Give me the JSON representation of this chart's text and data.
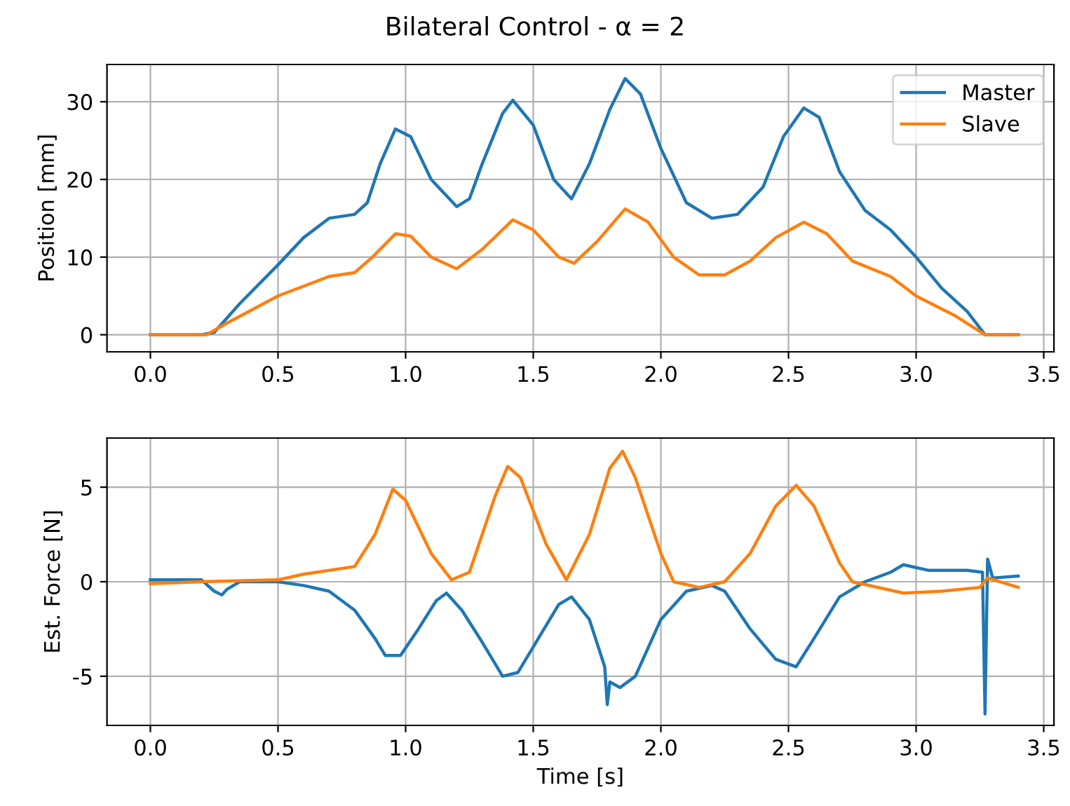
{
  "chart_data": [
    {
      "type": "line",
      "title": "Bilateral Control - α = 2",
      "ylabel": "Position [mm]",
      "xlim": [
        -0.17,
        3.54
      ],
      "xticks": [
        {
          "value": 0,
          "label": "0.0"
        },
        {
          "value": 0.5,
          "label": "0.5"
        },
        {
          "value": 1,
          "label": "1.0"
        },
        {
          "value": 1.5,
          "label": "1.5"
        },
        {
          "value": 2,
          "label": "2.0"
        },
        {
          "value": 2.5,
          "label": "2.5"
        },
        {
          "value": 3,
          "label": "3.0"
        },
        {
          "value": 3.5,
          "label": "3.5"
        }
      ],
      "ylim": [
        -2.2,
        34.8
      ],
      "yticks": [
        0,
        10,
        20,
        30
      ],
      "grid": true,
      "legend": "top right",
      "series": [
        {
          "name": "Master",
          "color": "#1f77b4",
          "x": [
            0,
            0.2,
            0.25,
            0.35,
            0.5,
            0.6,
            0.7,
            0.8,
            0.85,
            0.9,
            0.96,
            1.02,
            1.1,
            1.2,
            1.25,
            1.3,
            1.38,
            1.42,
            1.5,
            1.58,
            1.65,
            1.72,
            1.8,
            1.86,
            1.92,
            2.0,
            2.1,
            2.2,
            2.3,
            2.4,
            2.48,
            2.56,
            2.62,
            2.7,
            2.8,
            2.9,
            3.0,
            3.1,
            3.2,
            3.27,
            3.4
          ],
          "values": [
            0,
            0,
            0.3,
            4,
            9,
            12.5,
            15,
            15.5,
            17,
            22,
            26.5,
            25.5,
            20,
            16.5,
            17.5,
            22,
            28.5,
            30.2,
            27,
            20,
            17.5,
            22,
            29,
            33,
            31,
            24,
            17,
            15,
            15.5,
            19,
            25.5,
            29.2,
            28,
            21,
            16,
            13.5,
            10,
            6,
            3,
            0,
            0
          ]
        },
        {
          "name": "Slave",
          "color": "#ff7f0e",
          "x": [
            0,
            0.22,
            0.3,
            0.5,
            0.7,
            0.8,
            0.87,
            0.96,
            1.02,
            1.1,
            1.2,
            1.3,
            1.42,
            1.5,
            1.6,
            1.66,
            1.75,
            1.86,
            1.95,
            2.05,
            2.15,
            2.25,
            2.35,
            2.45,
            2.56,
            2.65,
            2.75,
            2.9,
            3.0,
            3.15,
            3.27,
            3.4
          ],
          "values": [
            0,
            0,
            1.5,
            5,
            7.5,
            8,
            10,
            13,
            12.7,
            10,
            8.5,
            11,
            14.8,
            13.5,
            10,
            9.2,
            12,
            16.2,
            14.5,
            10,
            7.7,
            7.7,
            9.5,
            12.5,
            14.5,
            13,
            9.5,
            7.5,
            5,
            2.5,
            0,
            0
          ]
        }
      ]
    },
    {
      "type": "line",
      "xlabel": "Time [s]",
      "ylabel": "Est. Force [N]",
      "xlim": [
        -0.17,
        3.54
      ],
      "xticks": [
        {
          "value": 0,
          "label": "0.0"
        },
        {
          "value": 0.5,
          "label": "0.5"
        },
        {
          "value": 1,
          "label": "1.0"
        },
        {
          "value": 1.5,
          "label": "1.5"
        },
        {
          "value": 2,
          "label": "2.0"
        },
        {
          "value": 2.5,
          "label": "2.5"
        },
        {
          "value": 3,
          "label": "3.0"
        },
        {
          "value": 3.5,
          "label": "3.5"
        }
      ],
      "ylim": [
        -7.6,
        7.6
      ],
      "yticks": [
        -5,
        0,
        5
      ],
      "grid": true,
      "series": [
        {
          "color": "#1f77b4",
          "x": [
            0,
            0.2,
            0.25,
            0.28,
            0.3,
            0.35,
            0.5,
            0.6,
            0.7,
            0.8,
            0.88,
            0.92,
            0.98,
            1.05,
            1.12,
            1.16,
            1.22,
            1.3,
            1.38,
            1.44,
            1.52,
            1.6,
            1.65,
            1.72,
            1.78,
            1.79,
            1.8,
            1.84,
            1.9,
            2.0,
            2.1,
            2.2,
            2.25,
            2.35,
            2.45,
            2.53,
            2.6,
            2.7,
            2.8,
            2.9,
            2.95,
            3.05,
            3.2,
            3.26,
            3.27,
            3.28,
            3.3,
            3.4
          ],
          "values": [
            0.1,
            0.1,
            -0.5,
            -0.7,
            -0.4,
            0,
            0,
            -0.2,
            -0.5,
            -1.5,
            -3,
            -3.9,
            -3.9,
            -2.5,
            -1,
            -0.6,
            -1.5,
            -3.2,
            -5,
            -4.8,
            -3,
            -1.2,
            -0.8,
            -2,
            -4.5,
            -6.5,
            -5.3,
            -5.6,
            -5,
            -2,
            -0.5,
            -0.2,
            -0.5,
            -2.5,
            -4.1,
            -4.5,
            -3,
            -0.8,
            0,
            0.5,
            0.9,
            0.6,
            0.6,
            0.5,
            -7.0,
            1.2,
            0.2,
            0.3
          ]
        },
        {
          "color": "#ff7f0e",
          "x": [
            0,
            0.2,
            0.5,
            0.6,
            0.8,
            0.88,
            0.95,
            1.0,
            1.1,
            1.18,
            1.25,
            1.35,
            1.4,
            1.45,
            1.55,
            1.63,
            1.72,
            1.8,
            1.85,
            1.9,
            2.0,
            2.05,
            2.15,
            2.25,
            2.35,
            2.45,
            2.53,
            2.6,
            2.7,
            2.75,
            2.95,
            3.1,
            3.25,
            3.28,
            3.4
          ],
          "values": [
            -0.1,
            0,
            0.1,
            0.4,
            0.8,
            2.5,
            4.9,
            4.3,
            1.5,
            0.1,
            0.5,
            4.5,
            6.1,
            5.5,
            2,
            0.1,
            2.5,
            6,
            6.9,
            5.5,
            1.5,
            0,
            -0.3,
            0,
            1.5,
            4,
            5.1,
            4,
            1,
            0,
            -0.6,
            -0.5,
            -0.3,
            0.2,
            -0.3
          ]
        }
      ]
    }
  ]
}
